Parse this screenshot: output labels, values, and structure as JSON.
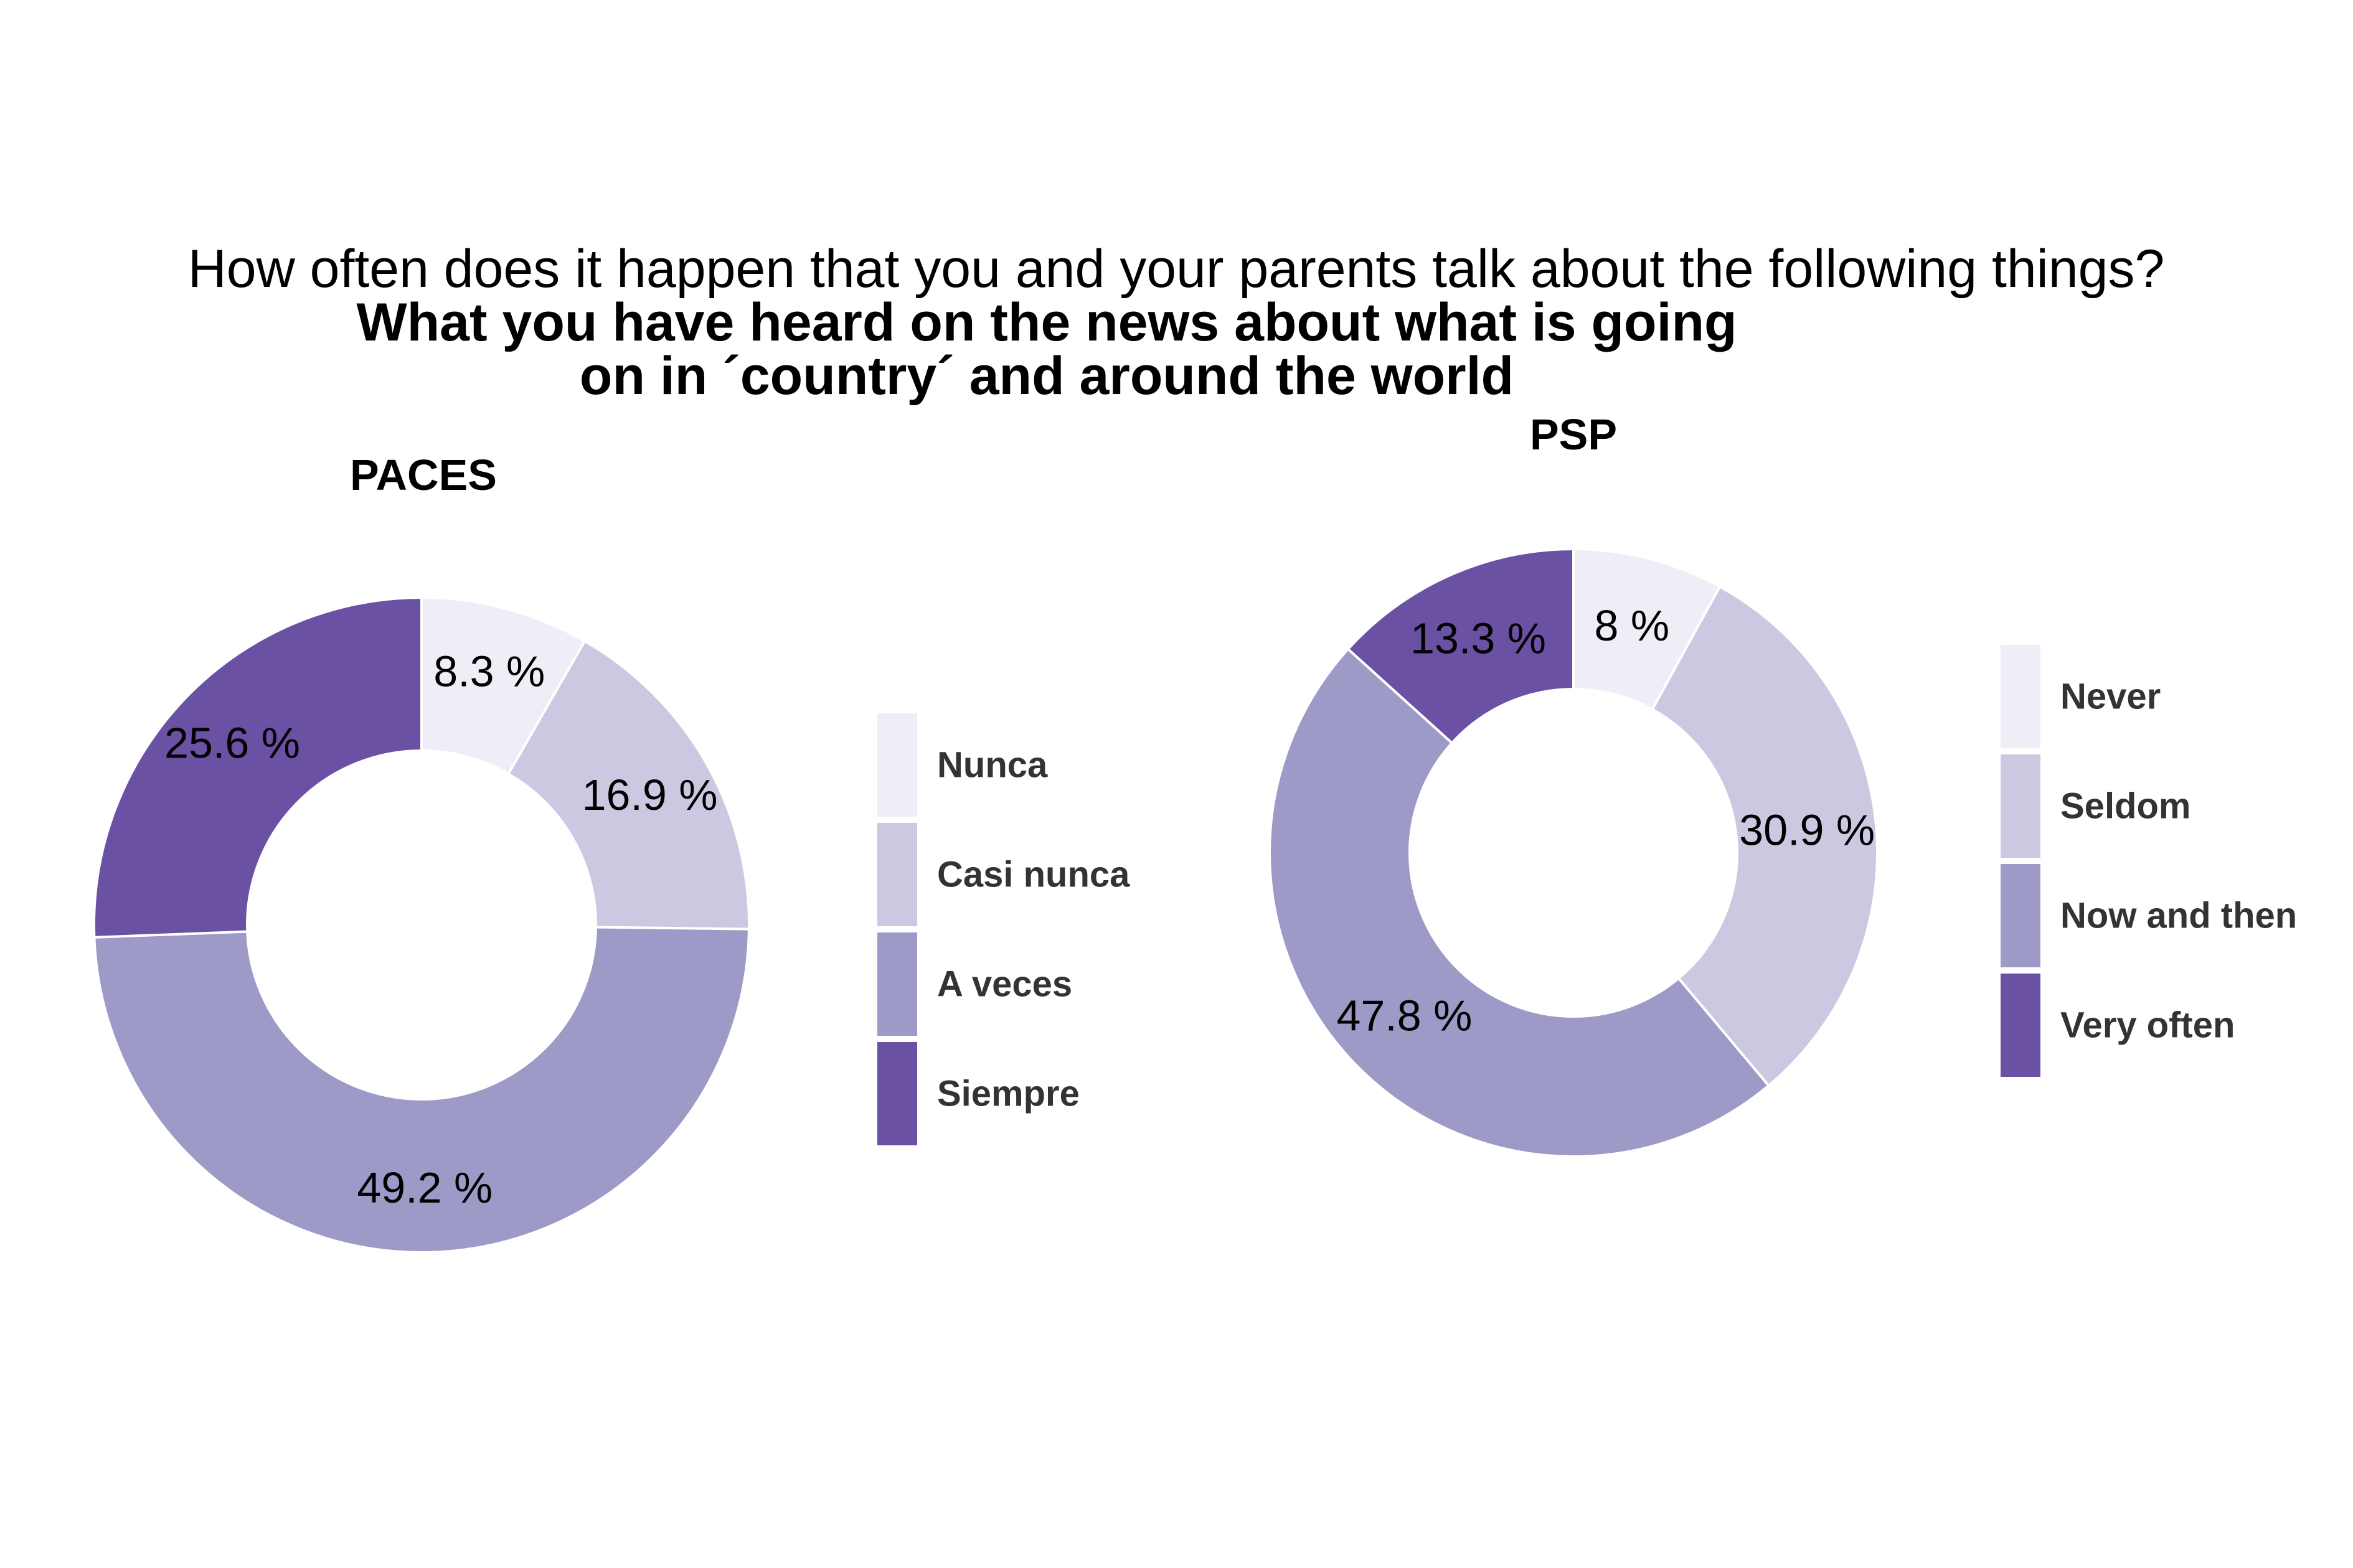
{
  "title": "How often does it happen that you and your parents talk about the following things?",
  "subtitle_lines": [
    "What you have heard on the news about what is going",
    "on in ´country´ and around the world"
  ],
  "colors": {
    "level1": "#efedf5",
    "level2": "#cbc9e2",
    "level3": "#9e9ac8",
    "level4": "#6a51a3"
  },
  "chart_data": [
    {
      "type": "pie",
      "variant": "donut",
      "title": "PACES",
      "categories": [
        "Nunca",
        "Casi nunca",
        "A veces",
        "Siempre"
      ],
      "values": [
        8.3,
        16.9,
        49.2,
        25.6
      ],
      "labels": [
        "8.3 %",
        "16.9 %",
        "49.2 %",
        "25.6 %"
      ],
      "colors": [
        "#efedf5",
        "#cbc9e2",
        "#9e9ac8",
        "#6a51a3"
      ],
      "legend_placement": "right"
    },
    {
      "type": "pie",
      "variant": "donut",
      "title": "PSP",
      "categories": [
        "Never",
        "Seldom",
        "Now and then",
        "Very often"
      ],
      "values": [
        8,
        30.9,
        47.8,
        13.3
      ],
      "labels": [
        "8 %",
        "30.9 %",
        "47.8 %",
        "13.3 %"
      ],
      "colors": [
        "#efedf5",
        "#cbc9e2",
        "#9e9ac8",
        "#6a51a3"
      ],
      "legend_placement": "right"
    }
  ]
}
